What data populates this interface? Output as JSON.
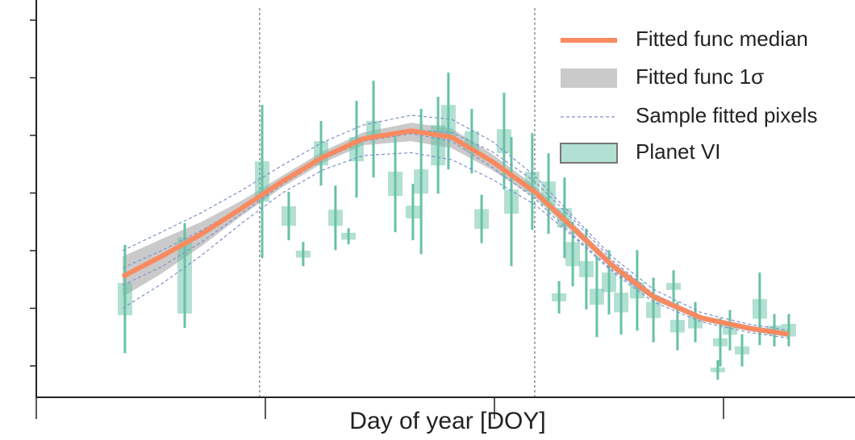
{
  "chart_data": {
    "type": "line",
    "x_label": "Day of year [DOY]",
    "xlim": [
      0,
      357.4
    ],
    "xticks": [
      0,
      100,
      200,
      300
    ],
    "ylim": [
      0.1455,
      0.835
    ],
    "yticks": [
      0.2,
      0.3,
      0.4,
      0.5,
      0.6,
      0.7,
      0.8
    ],
    "vlines": [
      97.5,
      217.6
    ],
    "legend": "upper right",
    "x": [
      37.7,
      54.6,
      72.2,
      89.8,
      107.4,
      125.0,
      142.6,
      163.7,
      181.3,
      198.9,
      217.6,
      234.2,
      251.8,
      269.4,
      290.5,
      311.6,
      328.5
    ],
    "median": {
      "name": "Fitted func median",
      "color": "#f98a60",
      "values": [
        0.355,
        0.39,
        0.429,
        0.474,
        0.52,
        0.562,
        0.594,
        0.608,
        0.597,
        0.555,
        0.502,
        0.44,
        0.373,
        0.32,
        0.283,
        0.265,
        0.255
      ]
    },
    "band": {
      "name": "Fitted func 1σ",
      "color": "#b3b3b3",
      "upper": [
        0.39,
        0.42,
        0.45,
        0.487,
        0.53,
        0.572,
        0.605,
        0.622,
        0.612,
        0.568,
        0.512,
        0.448,
        0.38,
        0.326,
        0.288,
        0.27,
        0.26
      ],
      "lower": [
        0.32,
        0.36,
        0.408,
        0.461,
        0.51,
        0.552,
        0.583,
        0.59,
        0.578,
        0.54,
        0.492,
        0.432,
        0.366,
        0.314,
        0.278,
        0.26,
        0.25
      ]
    },
    "samples": {
      "name": "Sample fitted pixels",
      "color": "#7f8fc8",
      "values": [
        [
          0.4,
          0.432,
          0.466,
          0.505,
          0.548,
          0.588,
          0.618,
          0.635,
          0.628,
          0.59,
          0.53,
          0.46,
          0.388,
          0.333,
          0.292,
          0.272,
          0.262
        ],
        [
          0.3,
          0.342,
          0.392,
          0.448,
          0.5,
          0.54,
          0.565,
          0.57,
          0.558,
          0.524,
          0.48,
          0.425,
          0.362,
          0.311,
          0.276,
          0.258,
          0.248
        ],
        [
          0.37,
          0.4,
          0.435,
          0.476,
          0.52,
          0.56,
          0.592,
          0.61,
          0.605,
          0.572,
          0.52,
          0.455,
          0.382,
          0.325,
          0.285,
          0.266,
          0.257
        ],
        [
          0.34,
          0.372,
          0.415,
          0.465,
          0.515,
          0.558,
          0.59,
          0.603,
          0.59,
          0.545,
          0.49,
          0.428,
          0.365,
          0.316,
          0.28,
          0.262,
          0.252
        ]
      ]
    },
    "points": {
      "name": "Planet VI",
      "color": "#66c2a5",
      "x": [
        38.7,
        64.8,
        98.6,
        110.2,
        116.5,
        124.3,
        130.6,
        136.3,
        139.8,
        147.2,
        156.7,
        164.4,
        168.0,
        175.4,
        179.9,
        190.1,
        194.4,
        204.2,
        207.4,
        216.5,
        223.6,
        230.6,
        228.2,
        234.2,
        240.1,
        244.7,
        250.0,
        255.3,
        262.3,
        269.4,
        278.2,
        279.9,
        287.7,
        297.5,
        298.6,
        302.8,
        308.1,
        315.8,
        322.2,
        328.5
      ],
      "values": [
        0.316,
        0.357,
        0.52,
        0.46,
        0.394,
        0.569,
        0.457,
        0.425,
        0.576,
        0.611,
        0.516,
        0.467,
        0.52,
        0.583,
        0.625,
        0.59,
        0.455,
        0.59,
        0.485,
        0.52,
        0.499,
        0.457,
        0.319,
        0.394,
        0.368,
        0.32,
        0.345,
        0.31,
        0.331,
        0.297,
        0.338,
        0.269,
        0.276,
        0.193,
        0.241,
        0.262,
        0.227,
        0.299,
        0.262,
        0.262
      ],
      "box": [
        0.028,
        0.066,
        0.035,
        0.017,
        0.006,
        0.021,
        0.014,
        0.006,
        0.021,
        0.014,
        0.021,
        0.011,
        0.021,
        0.035,
        0.028,
        0.017,
        0.017,
        0.021,
        0.021,
        0.017,
        0.021,
        0.017,
        0.007,
        0.021,
        0.014,
        0.014,
        0.017,
        0.017,
        0.014,
        0.014,
        0.006,
        0.011,
        0.011,
        0.004,
        0.007,
        0.008,
        0.007,
        0.017,
        0.008,
        0.011
      ],
      "errors": [
        0.094,
        0.091,
        0.133,
        0.042,
        0.021,
        0.056,
        0.056,
        0.014,
        0.084,
        0.084,
        0.084,
        0.049,
        0.126,
        0.084,
        0.084,
        0.056,
        0.042,
        0.084,
        0.112,
        0.084,
        0.07,
        0.07,
        0.028,
        0.056,
        0.07,
        0.07,
        0.056,
        0.056,
        0.07,
        0.056,
        0.028,
        0.042,
        0.035,
        0.017,
        0.042,
        0.035,
        0.028,
        0.063,
        0.028,
        0.028
      ]
    }
  }
}
